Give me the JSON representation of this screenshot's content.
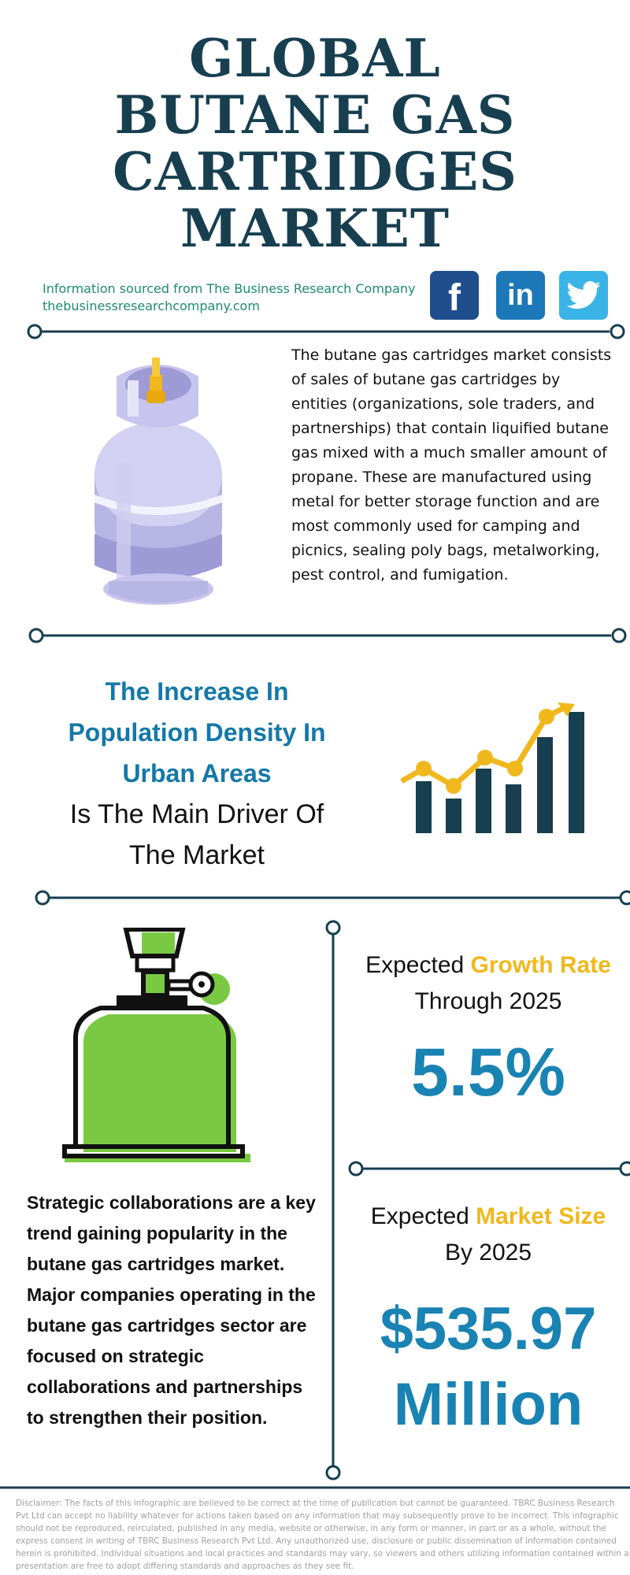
{
  "header": {
    "title_lines": [
      "GLOBAL",
      "BUTANE GAS",
      "CARTRIDGES",
      "MARKET"
    ]
  },
  "source": {
    "line1": "Information sourced from The Business Research Company",
    "line2": "thebusinessresearchcompany.com"
  },
  "social": {
    "facebook_label": "f",
    "linkedin_label": "in",
    "icons": [
      "facebook-icon",
      "linkedin-icon",
      "twitter-icon"
    ]
  },
  "intro": {
    "text": "The butane gas cartridges market consists of sales of butane gas cartridges by entities (organizations, sole traders, and partnerships) that contain liquified butane gas mixed with a much smaller amount of propane. These are manufactured using metal for better storage function and are most commonly used for camping and picnics, sealing poly bags, metalworking, pest control, and fumigation."
  },
  "driver": {
    "highlight_lines": [
      "The Increase In",
      "Population Density In",
      "Urban Areas"
    ],
    "rest_lines": [
      "Is The Main Driver Of",
      "The Market"
    ]
  },
  "growth": {
    "label_prefix": "Expected ",
    "label_highlight": "Growth Rate",
    "label_line2": "Through 2025",
    "value": "5.5%"
  },
  "market_size": {
    "label_prefix": "Expected ",
    "label_highlight": "Market Size",
    "label_line2": "By 2025",
    "value_line1": "$535.97",
    "value_line2": "Million"
  },
  "trend": {
    "text": "Strategic collaborations are a key trend gaining popularity in the butane gas cartridges market. Major companies operating in the butane gas cartridges sector are focused on strategic collaborations and partnerships to strengthen their position."
  },
  "disclaimer": {
    "text": "Disclaimer: The facts of this infographic are believed to be correct at the time of publication but cannot be guaranteed. TBRC Business Research Pvt Ltd can accept no liability whatever for actions taken based on any information that may subsequently prove to be incorrect. This infographic should not be reproduced, reirculated, published in any media, website or otherwise, in any form or manner, in part or as a whole, without the express consent in writing of TBRC Business Research Pvt Ltd. Any unauthorized use, disclosure or public dissemination of information contained herein is prohibited. Individual situations and local practices and standards may vary, so viewers and others utilizing information contained within a presentation are free to adopt differing standards and approaches as they see fit."
  },
  "colors": {
    "navy": "#173f50",
    "teal_text": "#1f8a6e",
    "blue": "#1983b3",
    "yellow": "#f0b81d",
    "green": "#7ac943",
    "lavender": "#b7b5e4"
  }
}
